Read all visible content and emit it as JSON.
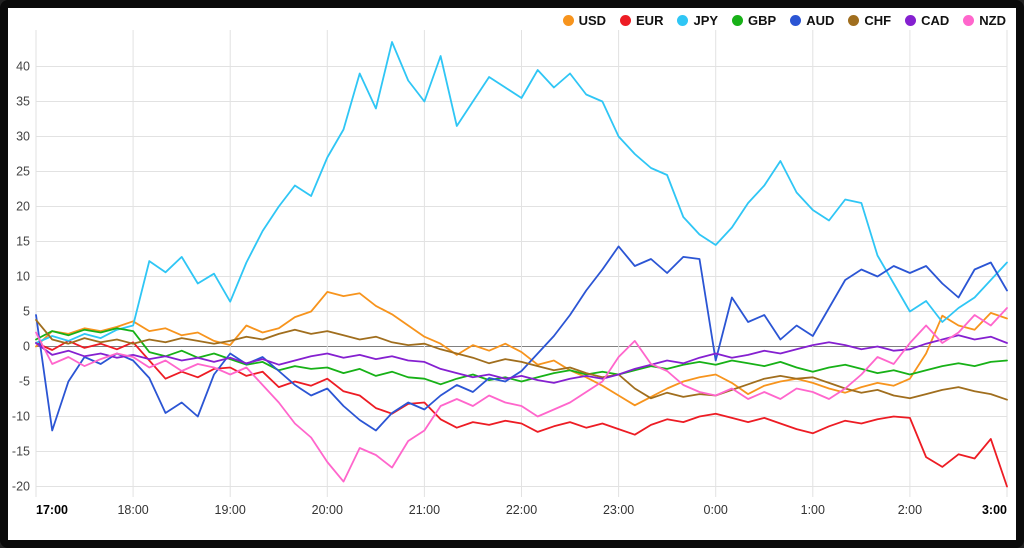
{
  "chart": {
    "background": "#ffffff",
    "frame_color": "#0a0a0a",
    "grid_color": "#e2e2e2",
    "zero_line_color": "#808080",
    "tick_color": "#444444"
  },
  "chart_data": {
    "type": "line",
    "title": "",
    "xlabel": "",
    "ylabel": "",
    "legend_position": "top-right",
    "grid": true,
    "x_ticks": [
      "17:00",
      "18:00",
      "19:00",
      "20:00",
      "21:00",
      "22:00",
      "23:00",
      "0:00",
      "1:00",
      "2:00",
      "3:00"
    ],
    "y_ticks": [
      -20,
      -15,
      -10,
      -5,
      0,
      5,
      10,
      15,
      20,
      25,
      30,
      35,
      40
    ],
    "ylim": [
      -21.5,
      44.5
    ],
    "points_per_hour": 6,
    "series": [
      {
        "name": "USD",
        "color": "#f7941d",
        "values": [
          0.0,
          2.2,
          1.8,
          2.6,
          2.2,
          2.8,
          3.6,
          2.2,
          2.6,
          1.6,
          2.0,
          0.8,
          0.2,
          3.0,
          2.0,
          2.6,
          4.2,
          5.0,
          7.8,
          7.2,
          7.6,
          5.8,
          4.6,
          3.0,
          1.4,
          0.4,
          -1.2,
          0.2,
          -0.6,
          0.4,
          -0.8,
          -2.6,
          -2.0,
          -3.4,
          -4.4,
          -5.6,
          -7.0,
          -8.4,
          -7.2,
          -6.0,
          -5.0,
          -4.4,
          -4.0,
          -5.2,
          -6.8,
          -5.6,
          -5.0,
          -4.6,
          -5.2,
          -6.0,
          -6.6,
          -5.8,
          -5.2,
          -5.6,
          -4.6,
          -1.0,
          4.4,
          3.0,
          2.4,
          4.8,
          4.0
        ]
      },
      {
        "name": "EUR",
        "color": "#ed1c24",
        "values": [
          0.5,
          -0.5,
          0.8,
          -0.2,
          0.4,
          -0.4,
          0.6,
          -2.0,
          -4.6,
          -3.6,
          -4.4,
          -3.2,
          -3.0,
          -4.2,
          -3.6,
          -5.8,
          -5.0,
          -5.6,
          -4.6,
          -6.4,
          -7.0,
          -8.8,
          -9.6,
          -8.2,
          -8.0,
          -10.4,
          -11.6,
          -10.8,
          -11.2,
          -10.6,
          -11.0,
          -12.2,
          -11.4,
          -10.8,
          -11.6,
          -11.0,
          -11.8,
          -12.6,
          -11.2,
          -10.4,
          -10.8,
          -10.0,
          -9.6,
          -10.2,
          -10.8,
          -10.2,
          -11.0,
          -11.8,
          -12.4,
          -11.4,
          -10.6,
          -11.0,
          -10.4,
          -10.0,
          -10.2,
          -15.8,
          -17.2,
          -15.4,
          -16.0,
          -13.2,
          -20.0
        ]
      },
      {
        "name": "JPY",
        "color": "#2fc6f5",
        "values": [
          0.5,
          1.5,
          0.8,
          1.8,
          1.2,
          2.4,
          3.0,
          12.2,
          10.6,
          12.8,
          9.0,
          10.4,
          6.4,
          12.0,
          16.5,
          20.0,
          23.0,
          21.5,
          27.0,
          31.0,
          39.0,
          34.0,
          43.5,
          38.0,
          35.0,
          41.5,
          31.5,
          35.0,
          38.5,
          37.0,
          35.5,
          39.5,
          37.0,
          39.0,
          36.0,
          35.0,
          30.0,
          27.5,
          25.5,
          24.5,
          18.5,
          16.0,
          14.5,
          17.0,
          20.5,
          23.0,
          26.5,
          22.0,
          19.5,
          18.0,
          21.0,
          20.5,
          13.0,
          9.0,
          5.0,
          6.5,
          3.5,
          5.5,
          7.0,
          9.5,
          12.0
        ]
      },
      {
        "name": "GBP",
        "color": "#17b117",
        "values": [
          1.0,
          2.2,
          1.6,
          2.4,
          2.0,
          2.6,
          2.2,
          -0.8,
          -1.4,
          -0.6,
          -1.6,
          -1.0,
          -1.8,
          -2.6,
          -2.2,
          -3.4,
          -2.8,
          -3.2,
          -3.0,
          -3.8,
          -3.2,
          -4.2,
          -3.6,
          -4.4,
          -4.6,
          -5.4,
          -4.6,
          -4.0,
          -4.8,
          -4.4,
          -5.0,
          -4.4,
          -3.8,
          -3.4,
          -4.0,
          -3.6,
          -4.0,
          -3.4,
          -2.8,
          -3.2,
          -2.6,
          -2.2,
          -2.6,
          -2.0,
          -2.4,
          -2.8,
          -2.2,
          -3.0,
          -3.6,
          -3.0,
          -2.6,
          -3.2,
          -3.8,
          -3.4,
          -4.0,
          -3.4,
          -2.8,
          -2.4,
          -2.8,
          -2.2,
          -2.0
        ]
      },
      {
        "name": "AUD",
        "color": "#2b55d4",
        "values": [
          4.5,
          -12.0,
          -5.0,
          -1.5,
          -2.5,
          -1.0,
          -2.0,
          -4.5,
          -9.5,
          -8.0,
          -10.0,
          -4.0,
          -1.0,
          -2.5,
          -1.5,
          -3.5,
          -5.5,
          -7.0,
          -6.0,
          -8.5,
          -10.5,
          -12.0,
          -9.5,
          -8.0,
          -9.0,
          -7.0,
          -5.5,
          -6.5,
          -4.5,
          -5.0,
          -3.5,
          -1.0,
          1.5,
          4.5,
          8.0,
          11.0,
          14.3,
          11.5,
          12.5,
          10.5,
          12.8,
          12.5,
          -2.0,
          7.0,
          3.5,
          4.5,
          1.0,
          3.0,
          1.5,
          5.5,
          9.5,
          11.0,
          10.0,
          11.5,
          10.5,
          11.5,
          9.0,
          7.0,
          11.0,
          12.0,
          8.0
        ]
      },
      {
        "name": "CHF",
        "color": "#a06e1e",
        "values": [
          3.8,
          1.0,
          0.4,
          1.2,
          0.6,
          1.0,
          0.4,
          1.0,
          0.6,
          1.2,
          0.8,
          0.4,
          0.8,
          1.4,
          1.0,
          1.8,
          2.4,
          1.8,
          2.2,
          1.6,
          1.0,
          1.4,
          0.6,
          0.2,
          0.4,
          -0.4,
          -1.0,
          -1.6,
          -2.4,
          -1.8,
          -2.2,
          -2.8,
          -3.4,
          -3.0,
          -3.8,
          -4.4,
          -4.0,
          -6.0,
          -7.4,
          -6.6,
          -7.2,
          -6.8,
          -7.0,
          -6.2,
          -5.4,
          -4.6,
          -4.2,
          -4.6,
          -4.4,
          -5.2,
          -6.0,
          -6.6,
          -6.2,
          -7.0,
          -7.4,
          -6.8,
          -6.2,
          -5.8,
          -6.4,
          -6.8,
          -7.6
        ]
      },
      {
        "name": "CAD",
        "color": "#8520d0",
        "values": [
          0.5,
          -1.2,
          -0.6,
          -1.4,
          -1.0,
          -1.6,
          -1.2,
          -1.8,
          -1.4,
          -2.0,
          -1.6,
          -2.2,
          -1.6,
          -2.4,
          -1.8,
          -2.6,
          -2.0,
          -1.4,
          -1.0,
          -1.6,
          -1.2,
          -1.8,
          -1.4,
          -2.0,
          -2.2,
          -3.2,
          -3.8,
          -4.4,
          -4.0,
          -4.6,
          -4.2,
          -4.8,
          -5.2,
          -4.6,
          -4.2,
          -4.6,
          -4.0,
          -3.2,
          -2.6,
          -2.0,
          -2.4,
          -1.6,
          -1.0,
          -1.6,
          -1.2,
          -0.6,
          -1.0,
          -0.4,
          0.2,
          0.6,
          0.2,
          -0.4,
          0.0,
          -0.6,
          -0.4,
          0.4,
          1.0,
          1.6,
          1.0,
          1.4,
          0.5
        ]
      },
      {
        "name": "NZD",
        "color": "#ff66cc",
        "values": [
          2.0,
          -2.5,
          -1.5,
          -2.8,
          -1.8,
          -1.0,
          -1.5,
          -3.0,
          -2.0,
          -3.5,
          -2.5,
          -3.0,
          -4.0,
          -3.0,
          -5.5,
          -8.0,
          -11.0,
          -13.0,
          -16.5,
          -19.3,
          -14.5,
          -15.5,
          -17.3,
          -13.5,
          -12.0,
          -8.5,
          -7.5,
          -8.5,
          -7.0,
          -8.0,
          -8.5,
          -10.0,
          -9.0,
          -8.0,
          -6.5,
          -5.0,
          -1.5,
          0.8,
          -2.5,
          -3.5,
          -5.5,
          -6.5,
          -7.0,
          -6.0,
          -7.5,
          -6.5,
          -7.5,
          -6.0,
          -6.5,
          -7.5,
          -6.0,
          -4.0,
          -1.5,
          -2.5,
          0.5,
          3.0,
          0.5,
          2.0,
          4.5,
          3.0,
          5.5
        ]
      }
    ]
  }
}
